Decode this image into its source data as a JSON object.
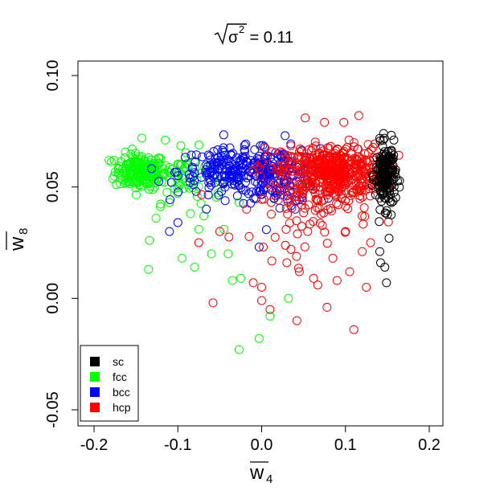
{
  "chart_data": {
    "type": "scatter",
    "title_prefix": "σ",
    "title_exponent": "2",
    "title_suffix": " = 0.11",
    "xlabel": "w",
    "xlabel_subscript": "4",
    "ylabel": "w",
    "ylabel_subscript": "8",
    "xlim": [
      -0.2,
      0.2
    ],
    "ylim": [
      -0.05,
      0.1
    ],
    "xticks": [
      -0.2,
      -0.1,
      0.0,
      0.1,
      0.2
    ],
    "xtick_labels": [
      "-0.2",
      "-0.1",
      "0.0",
      "0.1",
      "0.2"
    ],
    "yticks": [
      -0.05,
      0.0,
      0.05,
      0.1
    ],
    "ytick_labels": [
      "-0.05",
      "0.00",
      "0.05",
      "0.10"
    ],
    "grid": false,
    "legend": "bottom-left",
    "marker": "open-circle",
    "series": [
      {
        "name": "sc",
        "color": "#000000",
        "clusters": [
          {
            "x_center": 0.148,
            "x_spread": 0.006,
            "y_center": 0.055,
            "y_spread": 0.007,
            "count": 180
          }
        ],
        "points": [
          [
            0.145,
            0.071
          ],
          [
            0.152,
            0.027
          ],
          [
            0.147,
            0.014
          ],
          [
            0.142,
            0.016
          ],
          [
            0.149,
            0.007
          ],
          [
            0.141,
            0.021
          ],
          [
            0.155,
            0.043
          ]
        ]
      },
      {
        "name": "fcc",
        "color": "#00ff00",
        "clusters": [
          {
            "x_center": -0.145,
            "x_spread": 0.015,
            "y_center": 0.057,
            "y_spread": 0.004,
            "count": 170
          },
          {
            "x_center": -0.095,
            "x_spread": 0.025,
            "y_center": 0.055,
            "y_spread": 0.006,
            "count": 70
          }
        ],
        "points": [
          [
            -0.135,
            0.013
          ],
          [
            -0.134,
            0.026
          ],
          [
            -0.126,
            0.036
          ],
          [
            -0.095,
            0.018
          ],
          [
            -0.08,
            0.014
          ],
          [
            -0.075,
            0.031
          ],
          [
            -0.069,
            0.037
          ],
          [
            -0.06,
            0.02
          ],
          [
            -0.045,
            0.031
          ],
          [
            -0.04,
            0.02
          ],
          [
            -0.035,
            0.008
          ],
          [
            -0.025,
            0.009
          ],
          [
            -0.027,
            -0.023
          ],
          [
            -0.003,
            -0.018
          ],
          [
            0.01,
            -0.008
          ],
          [
            0.032,
            0.0
          ],
          [
            -0.115,
            0.071
          ],
          [
            -0.143,
            0.072
          ],
          [
            -0.11,
            0.043
          ],
          [
            -0.085,
            0.038
          ]
        ]
      },
      {
        "name": "bcc",
        "color": "#0000ff",
        "clusters": [
          {
            "x_center": -0.03,
            "x_spread": 0.035,
            "y_center": 0.057,
            "y_spread": 0.005,
            "count": 220
          },
          {
            "x_center": 0.02,
            "x_spread": 0.025,
            "y_center": 0.055,
            "y_spread": 0.006,
            "count": 120
          }
        ],
        "points": [
          [
            -0.11,
            0.03
          ],
          [
            -0.1,
            0.034
          ],
          [
            -0.048,
            0.048
          ],
          [
            0.028,
            0.073
          ],
          [
            -0.003,
            0.023
          ],
          [
            0.015,
            0.045
          ],
          [
            -0.02,
            0.066
          ],
          [
            0.04,
            0.04
          ]
        ]
      },
      {
        "name": "hcp",
        "color": "#ff0000",
        "clusters": [
          {
            "x_center": 0.085,
            "x_spread": 0.03,
            "y_center": 0.057,
            "y_spread": 0.006,
            "count": 420
          },
          {
            "x_center": 0.06,
            "x_spread": 0.035,
            "y_center": 0.045,
            "y_spread": 0.01,
            "count": 110
          }
        ],
        "points": [
          [
            -0.058,
            -0.002
          ],
          [
            0.002,
            0.023
          ],
          [
            -0.01,
            0.007
          ],
          [
            0.0,
            0.005
          ],
          [
            0.0,
            -0.001
          ],
          [
            0.01,
            -0.005
          ],
          [
            0.042,
            -0.01
          ],
          [
            0.067,
            0.006
          ],
          [
            0.078,
            -0.004
          ],
          [
            0.11,
            -0.014
          ],
          [
            0.09,
            0.008
          ],
          [
            0.125,
            0.005
          ],
          [
            0.052,
            0.081
          ],
          [
            0.116,
            0.082
          ],
          [
            0.075,
            0.079
          ],
          [
            0.098,
            0.079
          ],
          [
            0.035,
            0.022
          ],
          [
            0.055,
            0.03
          ],
          [
            0.085,
            0.018
          ],
          [
            0.105,
            0.012
          ],
          [
            0.12,
            0.021
          ],
          [
            0.062,
            0.009
          ],
          [
            -0.075,
            0.025
          ],
          [
            -0.05,
            0.03
          ],
          [
            0.03,
            0.016
          ],
          [
            0.1,
            0.03
          ],
          [
            0.13,
            0.025
          ],
          [
            0.045,
            0.012
          ]
        ]
      }
    ]
  }
}
